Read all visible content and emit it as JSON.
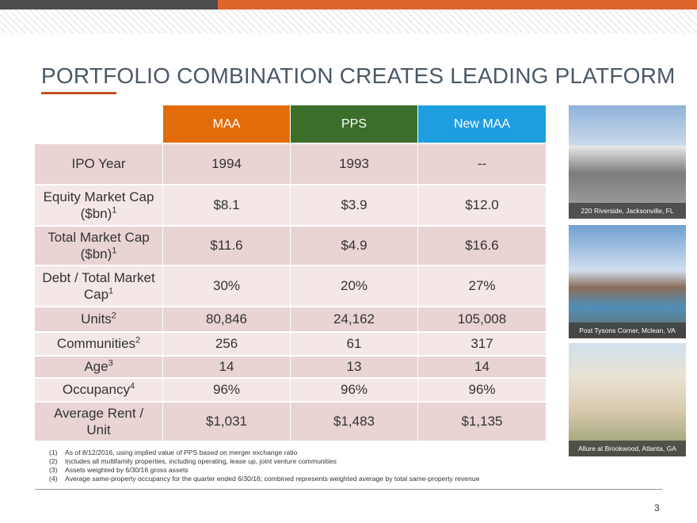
{
  "header": {
    "title": "PORTFOLIO COMBINATION CREATES LEADING PLATFORM"
  },
  "table": {
    "columns": [
      "MAA",
      "PPS",
      "New MAA"
    ],
    "rows": [
      {
        "label": "IPO Year",
        "sup": null,
        "cells": [
          "1994",
          "1993",
          "--"
        ]
      },
      {
        "label": "Equity Market Cap ($bn)",
        "sup": "1",
        "cells": [
          "$8.1",
          "$3.9",
          "$12.0"
        ]
      },
      {
        "label": "Total Market Cap ($bn)",
        "sup": "1",
        "cells": [
          "$11.6",
          "$4.9",
          "$16.6"
        ]
      },
      {
        "label": "Debt / Total Market Cap",
        "sup": "1",
        "cells": [
          "30%",
          "20%",
          "27%"
        ]
      },
      {
        "label": "Units",
        "sup": "2",
        "cells": [
          "80,846",
          "24,162",
          "105,008"
        ]
      },
      {
        "label": "Communities",
        "sup": "2",
        "cells": [
          "256",
          "61",
          "317"
        ]
      },
      {
        "label": "Age",
        "sup": "3",
        "cells": [
          "14",
          "13",
          "14"
        ]
      },
      {
        "label": "Occupancy",
        "sup": "4",
        "cells": [
          "96%",
          "96%",
          "96%"
        ]
      },
      {
        "label": "Average Rent / Unit",
        "sup": null,
        "cells": [
          "$1,031",
          "$1,483",
          "$1,135"
        ]
      }
    ]
  },
  "photos": [
    {
      "caption": "220 Riverside, Jacksonville, FL"
    },
    {
      "caption": "Post Tysons Corner, Mclean, VA"
    },
    {
      "caption": "Allure at Brookwood, Atlanta, GA"
    }
  ],
  "footnotes": [
    {
      "num": "(1)",
      "text": "As of 8/12/2016, using implied value of PPS based on merger exchange ratio"
    },
    {
      "num": "(2)",
      "text": "Includes all multifamily properties, including operating, lease up, joint venture communities"
    },
    {
      "num": "(3)",
      "text": "Assets weighted by 6/30/16 gross assets"
    },
    {
      "num": "(4)",
      "text": "Average same-property occupancy for the quarter ended 6/30/16; combined represents weighted average by total same-property revenue"
    }
  ],
  "footer": {
    "page_number": "3"
  }
}
